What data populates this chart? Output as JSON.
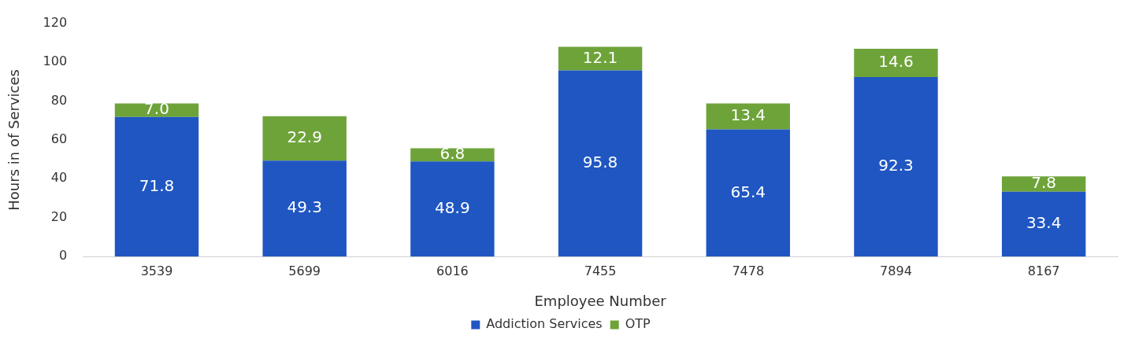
{
  "chart_data": {
    "type": "bar",
    "stacked": true,
    "xlabel": "Employee Number",
    "ylabel": "Hours in of Services",
    "categories": [
      "3539",
      "5699",
      "6016",
      "7455",
      "7478",
      "7894",
      "8167"
    ],
    "series": [
      {
        "name": "Addiction Services",
        "color": "#1f56c2",
        "values": [
          71.8,
          49.3,
          48.9,
          95.8,
          65.4,
          92.3,
          33.4
        ],
        "value_labels": [
          "71.8",
          "49.3",
          "48.9",
          "95.8",
          "65.4",
          "92.3",
          "33.4"
        ]
      },
      {
        "name": "OTP",
        "color": "#6ea33a",
        "values": [
          7.0,
          22.9,
          6.8,
          12.1,
          13.4,
          14.6,
          7.8
        ],
        "value_labels": [
          "7.0",
          "22.9",
          "6.8",
          "12.1",
          "13.4",
          "14.6",
          "7.8"
        ]
      }
    ],
    "ylim": [
      0,
      120
    ],
    "yticks": [
      0,
      20,
      40,
      60,
      80,
      100,
      120
    ],
    "grid": false,
    "legend": "bottom"
  }
}
